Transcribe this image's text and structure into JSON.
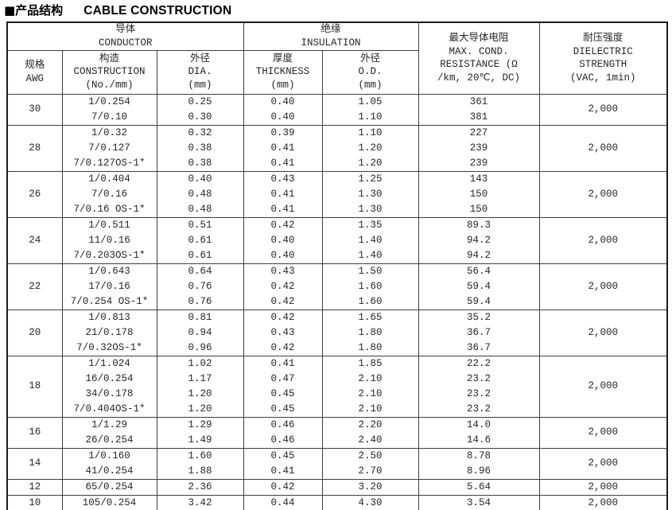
{
  "title": {
    "cn": "■产品结构",
    "en": "CABLE CONSTRUCTION"
  },
  "colors": {
    "background": "#ffffff",
    "text": "#262626",
    "inner_border": "#3f3f3f",
    "outer_border": "#1c1c1c",
    "title": "#000000"
  },
  "table": {
    "header": {
      "conductor": {
        "lines": [
          "导体",
          "CONDUCTOR"
        ]
      },
      "insulation": {
        "lines": [
          "绝缘",
          "INSULATION"
        ]
      },
      "awg": {
        "lines": [
          "规格",
          "AWG"
        ]
      },
      "construction": {
        "lines": [
          "构造",
          "CONSTRUCTION",
          "(No./mm)"
        ]
      },
      "dia": {
        "lines": [
          "外径",
          "DIA.",
          "(mm)"
        ]
      },
      "thickness": {
        "lines": [
          "厚度",
          "THICKNESS",
          "(mm)"
        ]
      },
      "od": {
        "lines": [
          "外径",
          "O.D.",
          "(mm)"
        ]
      },
      "resistance": {
        "lines": [
          "最大导体电阻",
          "MAX. COND.",
          "RESISTANCE (Ω",
          "/km, 20℃, DC)"
        ]
      },
      "dielectric": {
        "lines": [
          "耐压强度",
          "DIELECTRIC",
          "STRENGTH",
          "(VAC, 1min)"
        ]
      }
    },
    "groups": [
      {
        "awg": "30",
        "construction": [
          "1/0.254",
          "7/0.10"
        ],
        "dia": [
          "0.25",
          "0.30"
        ],
        "thickness": [
          "0.40",
          "0.40"
        ],
        "od": [
          "1.05",
          "1.10"
        ],
        "resistance": [
          "361",
          "381"
        ],
        "dielectric": "2,000"
      },
      {
        "awg": "28",
        "construction": [
          "1/0.32",
          "7/0.127",
          "7/0.127OS-1*"
        ],
        "dia": [
          "0.32",
          "0.38",
          "0.38"
        ],
        "thickness": [
          "0.39",
          "0.41",
          "0.41"
        ],
        "od": [
          "1.10",
          "1.20",
          "1.20"
        ],
        "resistance": [
          "227",
          "239",
          "239"
        ],
        "dielectric": "2,000"
      },
      {
        "awg": "26",
        "construction": [
          "1/0.404",
          "7/0.16",
          "7/0.16 OS-1*"
        ],
        "dia": [
          "0.40",
          "0.48",
          "0.48"
        ],
        "thickness": [
          "0.43",
          "0.41",
          "0.41"
        ],
        "od": [
          "1.25",
          "1.30",
          "1.30"
        ],
        "resistance": [
          "143",
          "150",
          "150"
        ],
        "dielectric": "2,000"
      },
      {
        "awg": "24",
        "construction": [
          "1/0.511",
          "11/0.16",
          "7/0.203OS-1*"
        ],
        "dia": [
          "0.51",
          "0.61",
          "0.61"
        ],
        "thickness": [
          "0.42",
          "0.40",
          "0.40"
        ],
        "od": [
          "1.35",
          "1.40",
          "1.40"
        ],
        "resistance": [
          "89.3",
          "94.2",
          "94.2"
        ],
        "dielectric": "2,000"
      },
      {
        "awg": "22",
        "construction": [
          "1/0.643",
          "17/0.16",
          "7/0.254 OS-1*"
        ],
        "dia": [
          "0.64",
          "0.76",
          "0.76"
        ],
        "thickness": [
          "0.43",
          "0.42",
          "0.42"
        ],
        "od": [
          "1.50",
          "1.60",
          "1.60"
        ],
        "resistance": [
          "56.4",
          "59.4",
          "59.4"
        ],
        "dielectric": "2,000"
      },
      {
        "awg": "20",
        "construction": [
          "1/0.813",
          "21/0.178",
          "7/0.32OS-1*"
        ],
        "dia": [
          "0.81",
          "0.94",
          "0.96"
        ],
        "thickness": [
          "0.42",
          "0.43",
          "0.42"
        ],
        "od": [
          "1.65",
          "1.80",
          "1.80"
        ],
        "resistance": [
          "35.2",
          "36.7",
          "36.7"
        ],
        "dielectric": "2,000"
      },
      {
        "awg": "18",
        "construction": [
          "1/1.024",
          "16/0.254",
          "34/0.178",
          "7/0.404OS-1*"
        ],
        "dia": [
          "1.02",
          "1.17",
          "1.20",
          "1.20"
        ],
        "thickness": [
          "0.41",
          "0.47",
          "0.45",
          "0.45"
        ],
        "od": [
          "1.85",
          "2.10",
          "2.10",
          "2.10"
        ],
        "resistance": [
          "22.2",
          "23.2",
          "23.2",
          "23.2"
        ],
        "dielectric": "2,000"
      },
      {
        "awg": "16",
        "construction": [
          "1/1.29",
          "26/0.254"
        ],
        "dia": [
          "1.29",
          "1.49"
        ],
        "thickness": [
          "0.46",
          "0.46"
        ],
        "od": [
          "2.20",
          "2.40"
        ],
        "resistance": [
          "14.0",
          "14.6"
        ],
        "dielectric": "2,000"
      },
      {
        "awg": "14",
        "construction": [
          "1/0.160",
          "41/0.254"
        ],
        "dia": [
          "1.60",
          "1.88"
        ],
        "thickness": [
          "0.45",
          "0.41"
        ],
        "od": [
          "2.50",
          "2.70"
        ],
        "resistance": [
          "8.78",
          "8.96"
        ],
        "dielectric": "2,000"
      },
      {
        "awg": "12",
        "construction": [
          "65/0.254"
        ],
        "dia": [
          "2.36"
        ],
        "thickness": [
          "0.42"
        ],
        "od": [
          "3.20"
        ],
        "resistance": [
          "5.64"
        ],
        "dielectric": "2,000"
      },
      {
        "awg": "10",
        "construction": [
          "105/0.254"
        ],
        "dia": [
          "3.42"
        ],
        "thickness": [
          "0.44"
        ],
        "od": [
          "4.30"
        ],
        "resistance": [
          "3.54"
        ],
        "dielectric": "2,000"
      }
    ]
  }
}
